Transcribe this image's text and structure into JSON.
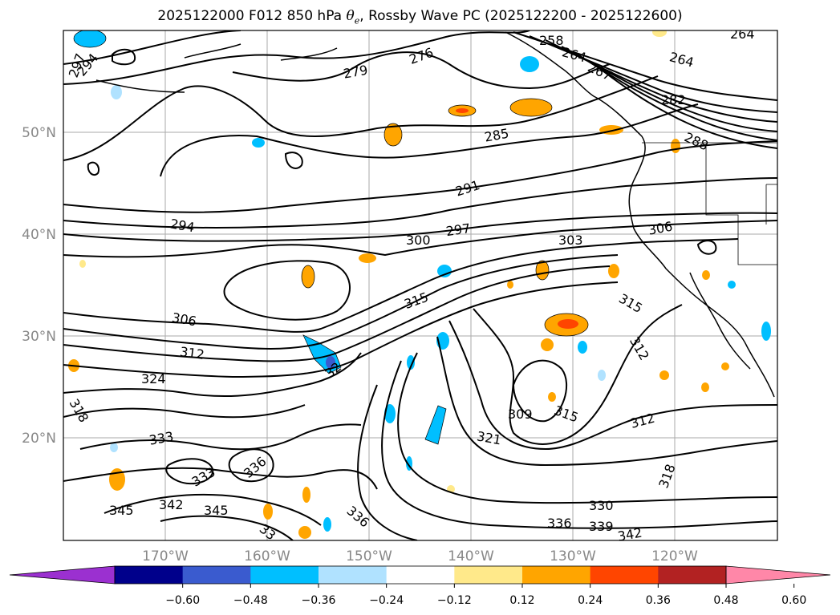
{
  "title": {
    "prefix": "2025122000 F012 850 hPa ",
    "theta": "θ",
    "sub": "e",
    "suffix": ", Rossby Wave PC (2025122200 - 2025122600)"
  },
  "map": {
    "lat_labels": [
      "50°N",
      "40°N",
      "30°N",
      "20°N"
    ],
    "lon_labels": [
      "170°W",
      "160°W",
      "150°W",
      "140°W",
      "130°W",
      "120°W"
    ]
  },
  "contour_labels": [
    "297",
    "294",
    "279",
    "276",
    "258",
    "264",
    "264",
    "267",
    "264",
    "282",
    "285",
    "288",
    "291",
    "294",
    "297",
    "300",
    "303",
    "306",
    "306",
    "315",
    "315",
    "312",
    "312",
    "312",
    "324",
    "318",
    "309",
    "315",
    "321",
    "333",
    "336",
    "333",
    "345",
    "342",
    "345",
    "330",
    "336",
    "339",
    "342",
    "318",
    "336",
    "33",
    "32"
  ],
  "colorbar": {
    "ticks": [
      "−0.60",
      "−0.48",
      "−0.36",
      "−0.24",
      "−0.12",
      "0.12",
      "0.24",
      "0.36",
      "0.48",
      "0.60"
    ],
    "colors": {
      "under": "#9b30d0",
      "bins": [
        "#00008b",
        "#3a5bcf",
        "#00bfff",
        "#b0e2ff",
        "#ffffff",
        "#ffe98a",
        "#ffa500",
        "#ff4500",
        "#b22222"
      ],
      "over": "#ff87a8"
    }
  }
}
